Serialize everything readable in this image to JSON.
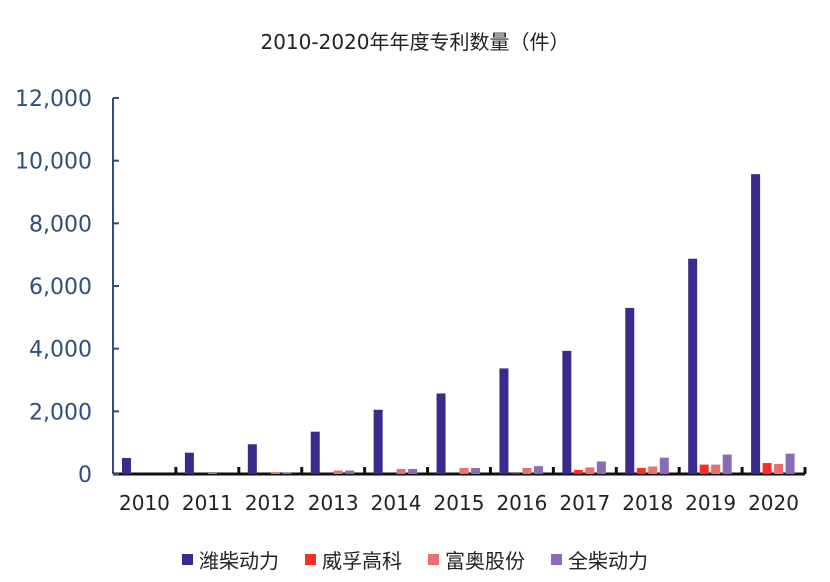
{
  "chart_data": {
    "type": "bar",
    "title": "2010-2020年年度专利数量（件）",
    "categories": [
      "2010",
      "2011",
      "2012",
      "2013",
      "2014",
      "2015",
      "2016",
      "2017",
      "2018",
      "2019",
      "2020"
    ],
    "ylim": [
      0,
      12000
    ],
    "yticks": [
      0,
      2000,
      4000,
      6000,
      8000,
      10000,
      12000
    ],
    "ytick_labels": [
      "0",
      "2,000",
      "4,000",
      "6,000",
      "8,000",
      "10,000",
      "12,000"
    ],
    "grid": false,
    "legend_position": "bottom",
    "series": [
      {
        "name": "潍柴动力",
        "color": "#3a2a8c",
        "values": [
          510,
          680,
          950,
          1350,
          2050,
          2570,
          3370,
          3930,
          5300,
          6870,
          9570
        ]
      },
      {
        "name": "威孚高科",
        "color": "#ff2a2a",
        "values": [
          0,
          0,
          0,
          0,
          0,
          0,
          20,
          130,
          190,
          300,
          350
        ]
      },
      {
        "name": "富奥股份",
        "color": "#e87070",
        "values": [
          0,
          30,
          60,
          110,
          160,
          190,
          190,
          210,
          240,
          300,
          320
        ]
      },
      {
        "name": "全柴动力",
        "color": "#8a6bb5",
        "values": [
          0,
          0,
          40,
          110,
          160,
          190,
          250,
          400,
          520,
          620,
          650
        ]
      }
    ]
  }
}
